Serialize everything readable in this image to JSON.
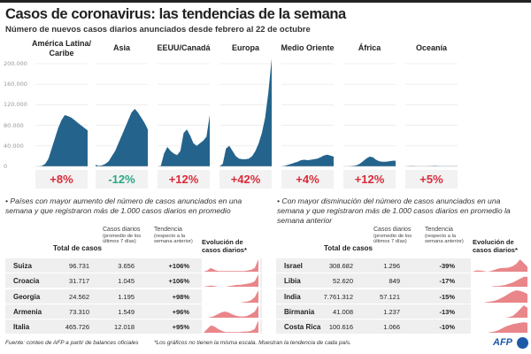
{
  "title": "Casos de coronavirus: las tendencias de la semana",
  "subtitle": "Número de nuevos casos diarios anunciados desde febrero al 22 de octubre",
  "colors": {
    "area": "#24648c",
    "increase": "#d92b3a",
    "decrease": "#2aa884",
    "sparkline": "#e9868a"
  },
  "chart_data": {
    "type": "area",
    "x_range": "febrero - 22 de octubre",
    "y_ticks": [
      "0",
      "40.000",
      "80.000",
      "120.000",
      "160.000",
      "200.000"
    ],
    "ylim": [
      0,
      210000
    ],
    "grid": true,
    "series": [
      {
        "name": "América Latina/ Caribe",
        "change": "+8%",
        "direction": "up",
        "values": [
          0,
          0,
          1000,
          5000,
          15000,
          35000,
          55000,
          75000,
          90000,
          100000,
          98000,
          95000,
          90000,
          85000,
          80000,
          75000,
          70000
        ]
      },
      {
        "name": "Asia",
        "change": "-12%",
        "direction": "down",
        "values": [
          3000,
          1000,
          2000,
          5000,
          10000,
          20000,
          30000,
          45000,
          60000,
          75000,
          90000,
          105000,
          112000,
          105000,
          95000,
          85000,
          72000
        ]
      },
      {
        "name": "EEUU/Canadá",
        "change": "+12%",
        "direction": "up",
        "values": [
          0,
          1000,
          25000,
          38000,
          30000,
          25000,
          22000,
          30000,
          65000,
          72000,
          60000,
          45000,
          40000,
          45000,
          50000,
          58000,
          100000
        ]
      },
      {
        "name": "Europa",
        "change": "+42%",
        "direction": "up",
        "values": [
          0,
          5000,
          35000,
          40000,
          30000,
          20000,
          15000,
          14000,
          14000,
          15000,
          20000,
          30000,
          45000,
          65000,
          95000,
          145000,
          210000
        ]
      },
      {
        "name": "Medio Oriente",
        "change": "+4%",
        "direction": "up",
        "values": [
          0,
          1000,
          3000,
          5000,
          7000,
          9000,
          12000,
          13000,
          12000,
          13000,
          14000,
          15000,
          18000,
          21000,
          23000,
          21000,
          19000
        ]
      },
      {
        "name": "África",
        "change": "+12%",
        "direction": "up",
        "values": [
          0,
          0,
          300,
          1000,
          2000,
          5000,
          10000,
          15000,
          19000,
          18000,
          13000,
          10000,
          9000,
          9000,
          10000,
          11000,
          11000
        ]
      },
      {
        "name": "Oceanía",
        "change": "+5%",
        "direction": "up",
        "values": [
          0,
          300,
          800,
          400,
          100,
          100,
          100,
          400,
          700,
          1000,
          700,
          400,
          300,
          300,
          300,
          300,
          300
        ]
      }
    ]
  },
  "left": {
    "bullet": "• Países con mayor aumento del número de casos anunciados en una semana y que registraron más de 1.000 casos diarios en promedio",
    "headers": {
      "total": "Total de casos",
      "daily": "Casos diarios",
      "daily_note": "(promedio de los últimos 7 días)",
      "trend": "Tendencia",
      "trend_note": "(respecto a la semana anterior)",
      "evo": "Evolución de casos diarios*"
    },
    "rows": [
      {
        "country": "Suiza",
        "total": "96.731",
        "daily": "3.656",
        "trend": "+106%",
        "spark": [
          0,
          2,
          6,
          3,
          1,
          1,
          1,
          1,
          1,
          1,
          1,
          1,
          2,
          3,
          6,
          20
        ]
      },
      {
        "country": "Croacia",
        "total": "31.717",
        "daily": "1.045",
        "trend": "+106%",
        "spark": [
          0,
          1,
          2,
          1,
          0,
          0,
          0,
          1,
          2,
          3,
          3,
          4,
          5,
          6,
          9,
          20
        ]
      },
      {
        "country": "Georgia",
        "total": "24.562",
        "daily": "1.195",
        "trend": "+98%",
        "spark": [
          0,
          0,
          0,
          0,
          0,
          0,
          0,
          0,
          0,
          0,
          0,
          1,
          2,
          4,
          9,
          20
        ]
      },
      {
        "country": "Armenia",
        "total": "73.310",
        "daily": "1.549",
        "trend": "+96%",
        "spark": [
          0,
          0,
          1,
          3,
          6,
          9,
          10,
          8,
          5,
          3,
          2,
          2,
          3,
          6,
          10,
          20
        ]
      },
      {
        "country": "Italia",
        "total": "465.726",
        "daily": "12.018",
        "trend": "+95%",
        "spark": [
          0,
          6,
          12,
          10,
          6,
          3,
          1,
          1,
          1,
          1,
          1,
          2,
          2,
          3,
          6,
          20
        ]
      }
    ]
  },
  "right": {
    "bullet": "• Con mayor disminución del número de casos anunciados en una semana y que registraron más de 1.000 casos diarios en promedio la semana anterior",
    "headers": {
      "total": "Total de casos",
      "daily": "Casos diarios",
      "daily_note": "(promedio de los últimos 7 días)",
      "trend": "Tendencia",
      "trend_note": "(respecto a la semana anterior)",
      "evo": "Evolución de casos diarios*"
    },
    "rows": [
      {
        "country": "Israel",
        "total": "308.682",
        "daily": "1.296",
        "trend": "-39%",
        "spark": [
          0,
          2,
          2,
          1,
          0,
          1,
          3,
          5,
          6,
          6,
          7,
          9,
          13,
          20,
          14,
          8
        ]
      },
      {
        "country": "Libia",
        "total": "52.620",
        "daily": "849",
        "trend": "-17%",
        "spark": [
          0,
          0,
          0,
          0,
          0,
          0,
          1,
          1,
          2,
          3,
          5,
          7,
          10,
          13,
          16,
          16
        ]
      },
      {
        "country": "India",
        "total": "7.761.312",
        "daily": "57.121",
        "trend": "-15%",
        "spark": [
          0,
          0,
          0,
          0,
          1,
          2,
          3,
          5,
          8,
          11,
          15,
          18,
          20,
          19,
          17,
          14
        ]
      },
      {
        "country": "Birmania",
        "total": "41.008",
        "daily": "1.237",
        "trend": "-13%",
        "spark": [
          0,
          0,
          0,
          0,
          0,
          0,
          0,
          0,
          0,
          0,
          1,
          3,
          8,
          14,
          20,
          16
        ]
      },
      {
        "country": "Costa Rica",
        "total": "100.616",
        "daily": "1.066",
        "trend": "-10%",
        "spark": [
          0,
          0,
          0,
          0,
          0,
          1,
          2,
          4,
          7,
          10,
          12,
          14,
          15,
          16,
          17,
          16
        ]
      }
    ]
  },
  "footer": {
    "source": "Fuente:  conteo de AFP a partir de balances oficiales",
    "note": "*Los gráficos no tienen la misma escala. Muestran la tendencia de cada país.",
    "logo": "AFP"
  }
}
